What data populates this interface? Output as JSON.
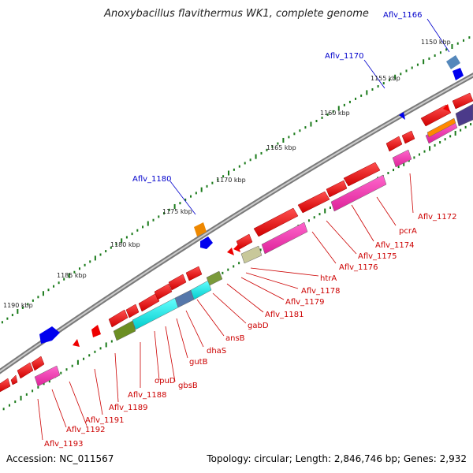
{
  "header": {
    "title": "Anoxybacillus flavithermus WK1, complete genome"
  },
  "footer": {
    "accession": "Accession: NC_011567",
    "summary": "Topology: circular; Length: 2,846,746 bp; Genes: 2,932"
  },
  "ticks": [
    "1150 kbp",
    "1155 kbp",
    "1160 kbp",
    "1165 kbp",
    "1170 kbp",
    "1175 kbp",
    "1180 kbp",
    "1185 kbp",
    "1190 kbp"
  ],
  "labels_top": [
    "Aflv_1166",
    "Aflv_1170",
    "Aflv_1180"
  ],
  "labels_bottom": [
    "Aflv_1172",
    "pcrA",
    "Aflv_1174",
    "Aflv_1175",
    "Aflv_1176",
    "htrA",
    "Aflv_1178",
    "Aflv_1179",
    "Aflv_1181",
    "gabD",
    "ansB",
    "dhaS",
    "gutB",
    "gbsB",
    "opuD",
    "Aflv_1188",
    "Aflv_1189",
    "Aflv_1191",
    "Aflv_1192",
    "Aflv_1193"
  ],
  "colors": {
    "forward": "#ee0000",
    "reverse": "#0000ee",
    "backbone": "#888888",
    "tickdot": "#1a7a1a",
    "label_red": "#cc0000",
    "label_blue": "#0000cc"
  }
}
